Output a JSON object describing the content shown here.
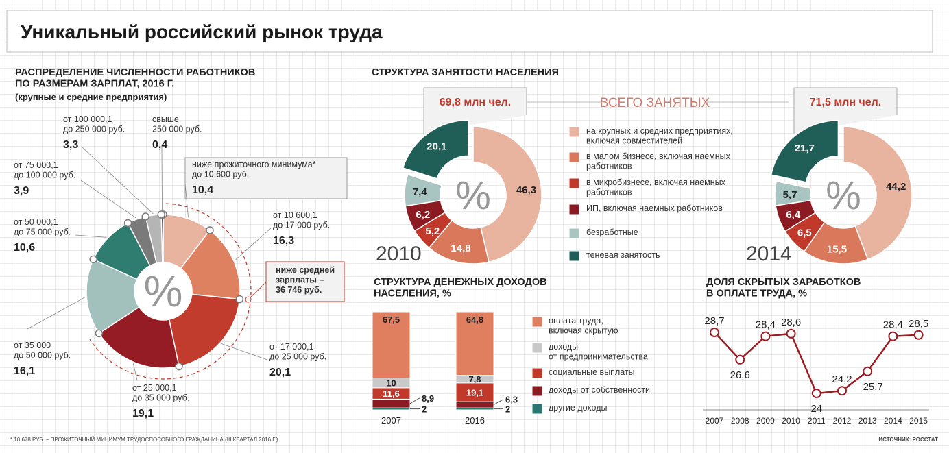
{
  "title": "Уникальный российский рынок труда",
  "footnote": "* 10 678 РУБ. – ПРОЖИТОЧНЫЙ МИНИМУМ ТРУДОСПОСОБНОГО ГРАЖДАНИНА (III КВАРТАЛ 2016 Г.)",
  "source": "ИСТОЧНИК: РОССТАТ",
  "chart_data": [
    {
      "type": "donut",
      "title": "РАСПРЕДЕЛЕНИЕ ЧИСЛЕННОСТИ РАБОТНИКОВ\nПО РАЗМЕРАМ ЗАРПЛАТ, 2016 Г.",
      "subtitle": "(крупные и средние предприятия)",
      "center_label": "%",
      "categories": [
        "ниже прожиточного минимума*\nдо 10 600 руб.",
        "от 10 600,1\nдо 17 000 руб.",
        "от 17 000,1\nдо 25 000 руб.",
        "от 25 000,1\nдо 35 000 руб.",
        "от 35 000\nдо 50 000 руб.",
        "от 50 000,1\nдо 75 000 руб.",
        "от 75 000,1\nдо 100 000 руб.",
        "от 100 000,1\nдо 250 000 руб.",
        "свыше\n250 000 руб."
      ],
      "values": [
        10.4,
        16.3,
        20.1,
        19.1,
        16.1,
        10.6,
        3.9,
        3.3,
        0.4
      ],
      "value_labels": [
        "10,4",
        "16,3",
        "20,1",
        "19,1",
        "16,1",
        "10,6",
        "3,9",
        "3,3",
        "0,4"
      ],
      "colors": [
        "#e8b4a0",
        "#de8161",
        "#c23c2e",
        "#951c24",
        "#a2c1bd",
        "#2f7d70",
        "#7a7a7a",
        "#b5b5b5",
        "#3c3c3c"
      ],
      "annotation": "ниже средней\nзарплаты –\n36 746 руб."
    },
    {
      "type": "donut",
      "title": "СТРУКТУРА ЗАНЯТОСТИ НАСЕЛЕНИЯ",
      "center_label": "%",
      "total_title": "ВСЕГО ЗАНЯТЫХ",
      "categories": [
        "на крупных и средних предприятиях,\nвключая совместителей",
        "в малом бизнесе, включая наемных\nработников",
        "в микробизнесе, включая наемных\nработников",
        "ИП, включая наемных работников",
        "безработные",
        "теневая занятость"
      ],
      "colors": [
        "#e8b4a0",
        "#d9785a",
        "#c0392b",
        "#8b1a22",
        "#a8c5c1",
        "#1f5f57"
      ],
      "series": [
        {
          "name": "2010",
          "total_label": "69,8 млн чел.",
          "values": [
            46.3,
            14.8,
            5.2,
            6.2,
            7.4,
            20.1
          ],
          "value_labels": [
            "46,3",
            "14,8",
            "5,2",
            "6,2",
            "7,4",
            "20,1"
          ]
        },
        {
          "name": "2014",
          "total_label": "71,5 млн чел.",
          "values": [
            44.2,
            15.5,
            6.5,
            6.4,
            5.7,
            21.7
          ],
          "value_labels": [
            "44,2",
            "15,5",
            "6,5",
            "6,4",
            "5,7",
            "21,7"
          ]
        }
      ]
    },
    {
      "type": "bar",
      "stacked": true,
      "title": "СТРУКТУРА ДЕНЕЖНЫХ ДОХОДОВ\nНАСЕЛЕНИЯ, %",
      "categories": [
        "2007",
        "2016"
      ],
      "series": [
        {
          "name": "оплата труда,\nвключая скрытую",
          "color": "#e07f5f",
          "values": [
            67.5,
            64.8
          ],
          "value_labels": [
            "67,5",
            "64,8"
          ]
        },
        {
          "name": "доходы\nот предпринимательства",
          "color": "#c9c9c9",
          "values": [
            10,
            7.8
          ],
          "value_labels": [
            "10",
            "7,8"
          ]
        },
        {
          "name": "социальные выплаты",
          "color": "#c0392b",
          "values": [
            11.6,
            19.1
          ],
          "value_labels": [
            "11,6",
            "19,1"
          ]
        },
        {
          "name": "доходы от собственности",
          "color": "#8b1a22",
          "values": [
            8.9,
            6.3
          ],
          "value_labels": [
            "8,9",
            "6,3"
          ]
        },
        {
          "name": "другие доходы",
          "color": "#2b7a72",
          "values": [
            2,
            2
          ]
        }
      ]
    },
    {
      "type": "line",
      "title": "ДОЛЯ СКРЫТЫХ ЗАРАБОТКОВ\nВ ОПЛАТЕ ТРУДА, %",
      "categories": [
        "2007",
        "2008",
        "2009",
        "2010",
        "2011",
        "2012",
        "2013",
        "2014",
        "2015"
      ],
      "values": [
        28.7,
        26.6,
        28.4,
        28.6,
        24,
        24.2,
        25.7,
        28.4,
        28.5
      ],
      "value_labels": [
        "28,7",
        "26,6",
        "28,4",
        "28,6",
        "24",
        "24,2",
        "25,7",
        "28,4",
        "28,5"
      ],
      "color": "#9b1b22"
    }
  ]
}
